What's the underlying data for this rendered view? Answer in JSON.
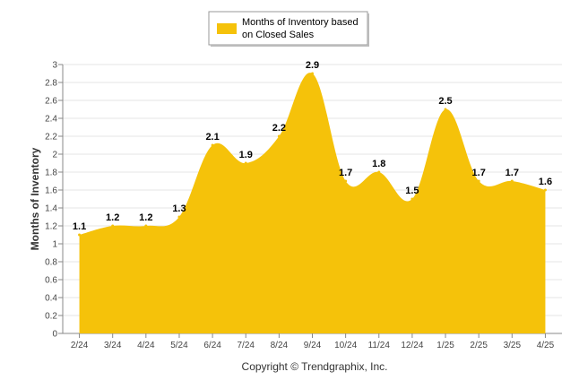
{
  "chart_data": {
    "type": "area",
    "categories": [
      "2/24",
      "3/24",
      "4/24",
      "5/24",
      "6/24",
      "7/24",
      "8/24",
      "9/24",
      "10/24",
      "11/24",
      "12/24",
      "1/25",
      "2/25",
      "3/25",
      "4/25"
    ],
    "series": [
      {
        "name": "Months of Inventory based on Closed Sales",
        "values": [
          1.1,
          1.2,
          1.2,
          1.3,
          2.1,
          1.9,
          2.2,
          2.9,
          1.7,
          1.8,
          1.5,
          2.5,
          1.7,
          1.7,
          1.6
        ],
        "labels": [
          "1.1",
          "1.2",
          "1.2",
          "1.3",
          "2.1",
          "1.9",
          "2.2",
          "2.9",
          "1.7",
          "1.8",
          "1.5",
          "2.5",
          "1.7",
          "1.7",
          "1.6"
        ],
        "color": "#F5C20A"
      }
    ],
    "xlabel": "",
    "ylabel": "Months of Inventory",
    "ylim": [
      0,
      3
    ],
    "yticks": [
      "0",
      "0.2",
      "0.4",
      "0.6",
      "0.8",
      "1",
      "1.2",
      "1.4",
      "1.6",
      "1.8",
      "2",
      "2.2",
      "2.4",
      "2.6",
      "2.8",
      "3"
    ],
    "grid": true,
    "legend_position": "top-center",
    "credit": "Copyright © Trendgraphix, Inc."
  }
}
